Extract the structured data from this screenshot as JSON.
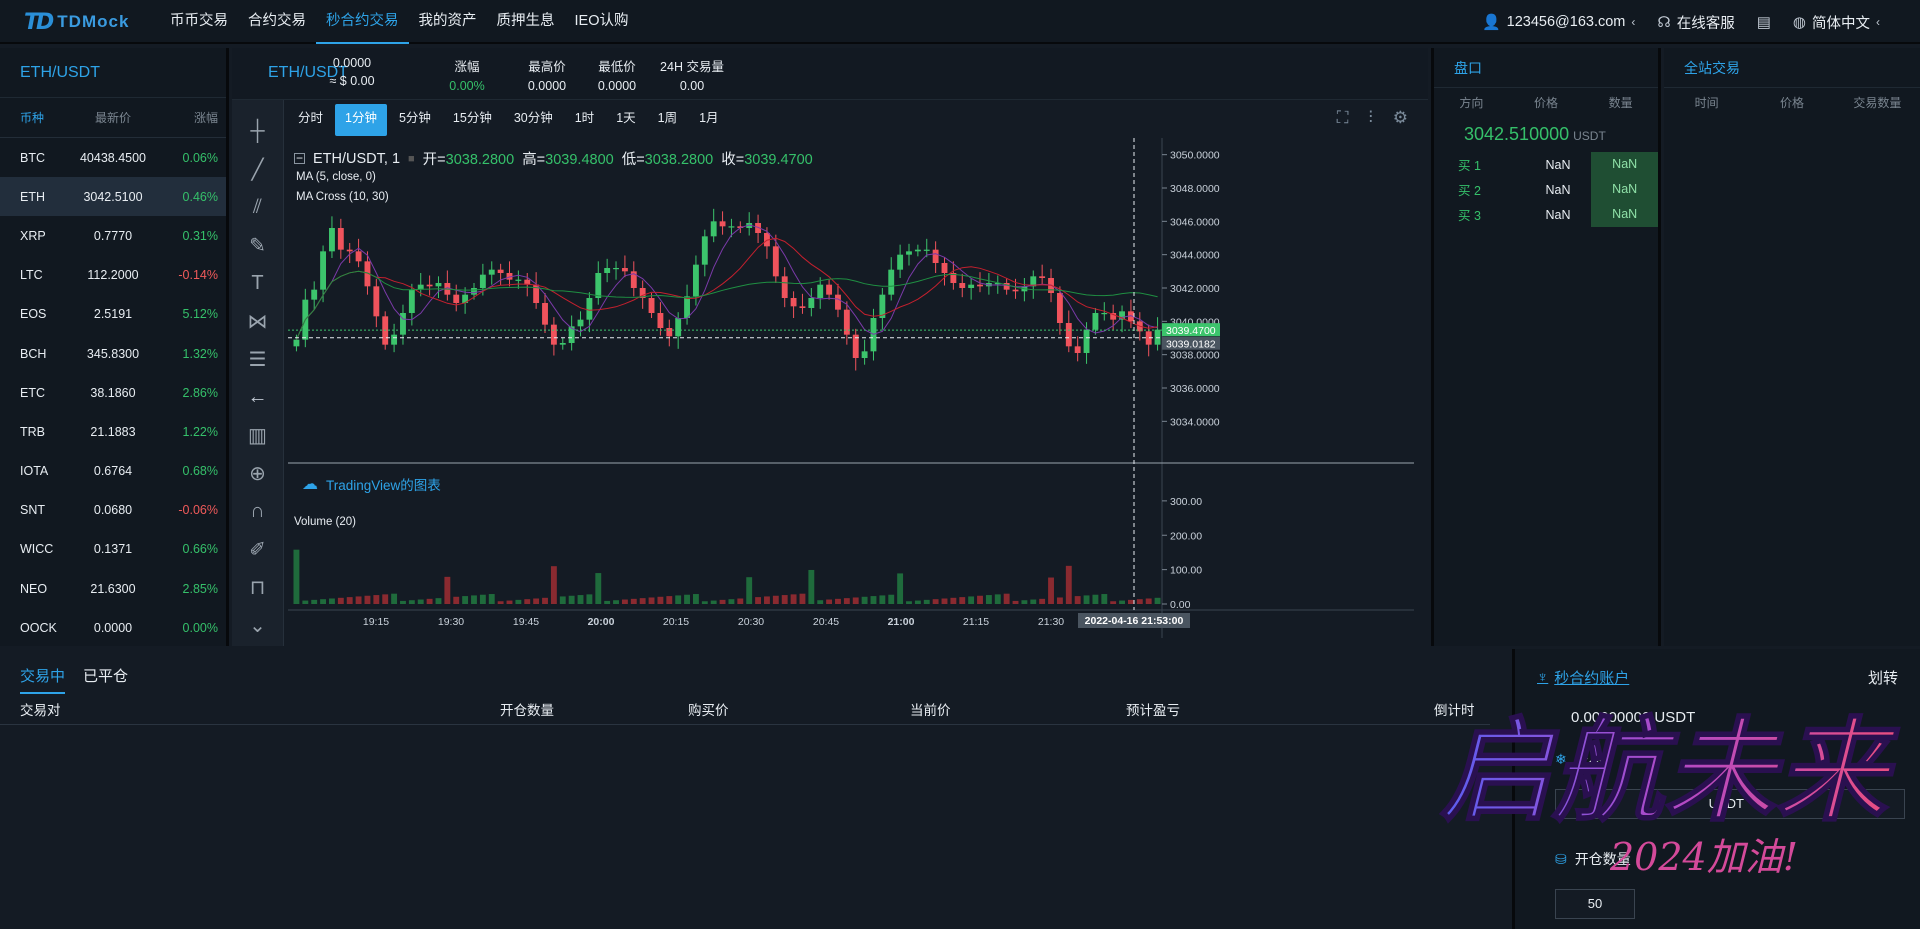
{
  "nav": {
    "logo": "TDMock",
    "items": [
      "币币交易",
      "合约交易",
      "秒合约交易",
      "我的资产",
      "质押生息",
      "IEO认购"
    ],
    "active_index": 2,
    "user": "123456@163.com",
    "service": "在线客服",
    "language": "简体中文"
  },
  "market": {
    "title": "ETH/USDT",
    "headers": [
      "币种",
      "最新价",
      "涨幅"
    ],
    "rows": [
      {
        "sym": "BTC",
        "price": "40438.4500",
        "chg": "0.06%",
        "dir": "up"
      },
      {
        "sym": "ETH",
        "price": "3042.5100",
        "chg": "0.46%",
        "dir": "up"
      },
      {
        "sym": "XRP",
        "price": "0.7770",
        "chg": "0.31%",
        "dir": "up"
      },
      {
        "sym": "LTC",
        "price": "112.2000",
        "chg": "-0.14%",
        "dir": "down"
      },
      {
        "sym": "EOS",
        "price": "2.5191",
        "chg": "5.12%",
        "dir": "up"
      },
      {
        "sym": "BCH",
        "price": "345.8300",
        "chg": "1.32%",
        "dir": "up"
      },
      {
        "sym": "ETC",
        "price": "38.1860",
        "chg": "2.86%",
        "dir": "up"
      },
      {
        "sym": "TRB",
        "price": "21.1883",
        "chg": "1.22%",
        "dir": "up"
      },
      {
        "sym": "IOTA",
        "price": "0.6764",
        "chg": "0.68%",
        "dir": "up"
      },
      {
        "sym": "SNT",
        "price": "0.0680",
        "chg": "-0.06%",
        "dir": "down"
      },
      {
        "sym": "WICC",
        "price": "0.1371",
        "chg": "0.66%",
        "dir": "up"
      },
      {
        "sym": "NEO",
        "price": "21.6300",
        "chg": "2.85%",
        "dir": "up"
      },
      {
        "sym": "OOCK",
        "price": "0.0000",
        "chg": "0.00%",
        "dir": "up"
      }
    ]
  },
  "ticker": {
    "symbol": "ETH/USDT",
    "last": "0.0000",
    "last_usd": "≈ $ 0.00",
    "change_label": "涨幅",
    "change": "0.00%",
    "high_label": "最高价",
    "high": "0.0000",
    "low_label": "最低价",
    "low": "0.0000",
    "vol_label": "24H 交易量",
    "vol": "0.00"
  },
  "intervals": [
    "分时",
    "1分钟",
    "5分钟",
    "15分钟",
    "30分钟",
    "1时",
    "1天",
    "1周",
    "1月"
  ],
  "interval_active": 1,
  "chart_legend": {
    "title": "ETH/USDT, 1",
    "open_label": "开=",
    "open": "3038.2800",
    "high_label": "高=",
    "high": "3039.4800",
    "low_label": "低=",
    "low": "3038.2800",
    "close_label": "收=",
    "close": "3039.4700",
    "ma": "MA (5, close, 0)",
    "macross": "MA Cross (10, 30)",
    "volume": "Volume (20)",
    "tv": "TradingView的图表",
    "crosshair_price": "3039.0182",
    "last_price_tag": "3039.4700",
    "crosshair_time": "2022-04-16 21:53:00"
  },
  "chart_data": {
    "type": "candlestick",
    "price_ticks": [
      "3050.0000",
      "3048.0000",
      "3046.0000",
      "3044.0000",
      "3042.0000",
      "3040.0000",
      "3038.0000",
      "3036.0000",
      "3034.0000"
    ],
    "ylim": [
      3033.6,
      3050.4
    ],
    "volume_ticks": [
      "300.00",
      "200.00",
      "100.00",
      "0.00"
    ],
    "vol_ylim": [
      0,
      320
    ],
    "time_ticks": [
      "19:15",
      "19:30",
      "19:45",
      "20:00",
      "20:15",
      "20:30",
      "20:45",
      "21:00",
      "21:15",
      "21:30"
    ],
    "closes": [
      3038.9,
      3041.3,
      3041.9,
      3044.2,
      3045.6,
      3044.3,
      3044.2,
      3043.6,
      3042.1,
      3040.3,
      3038.6,
      3039.2,
      3040.5,
      3041.9,
      3042.2,
      3042.1,
      3042.3,
      3041.6,
      3041.1,
      3041.6,
      3042.0,
      3042.8,
      3043.1,
      3042.9,
      3042.5,
      3042.5,
      3042.2,
      3041.1,
      3039.8,
      3038.6,
      3038.7,
      3039.7,
      3040.1,
      3041.4,
      3042.9,
      3043.2,
      3043.2,
      3043.0,
      3042.0,
      3041.4,
      3040.5,
      3039.6,
      3039.1,
      3040.2,
      3041.5,
      3043.4,
      3045.1,
      3046.0,
      3045.7,
      3045.7,
      3045.6,
      3045.9,
      3045.3,
      3044.5,
      3042.7,
      3041.4,
      3040.9,
      3040.8,
      3041.4,
      3042.2,
      3041.6,
      3040.7,
      3039.2,
      3037.8,
      3038.2,
      3040.2,
      3041.6,
      3043.1,
      3044.0,
      3044.2,
      3044.3,
      3044.3,
      3043.5,
      3042.9,
      3042.3,
      3042.0,
      3042.2,
      3042.1,
      3042.3,
      3042.3,
      3041.9,
      3041.8,
      3042.1,
      3042.7,
      3042.6,
      3041.7,
      3039.9,
      3038.5,
      3038.1,
      3039.5,
      3040.5,
      3040.5,
      3040.1,
      3040.6,
      3040.0,
      3039.4,
      3038.6,
      3039.5
    ]
  },
  "orderbook": {
    "title": "盘口",
    "headers": [
      "方向",
      "价格",
      "数量"
    ],
    "price": "3042.510000",
    "unit": "USDT",
    "rows": [
      {
        "side": "买 1",
        "price": "NaN",
        "qty": "NaN"
      },
      {
        "side": "买 2",
        "price": "NaN",
        "qty": "NaN"
      },
      {
        "side": "买 3",
        "price": "NaN",
        "qty": "NaN"
      }
    ]
  },
  "alltrades": {
    "title": "全站交易",
    "headers": [
      "时间",
      "价格",
      "交易数量"
    ]
  },
  "positions": {
    "tabs": [
      "交易中",
      "已平仓"
    ],
    "headers": [
      "交易对",
      "开仓数量",
      "购买价",
      "当前价",
      "预计盈亏",
      "倒计时"
    ]
  },
  "account": {
    "title": "秒合约账户",
    "transfer": "划转",
    "balance": "0.00000000 USDT",
    "trade_label": "交易",
    "unit": "USDT",
    "qty_label": "开仓数量",
    "qty_value": "50"
  },
  "watermark": {
    "main": "启航未来",
    "sub": "2024加油!"
  }
}
